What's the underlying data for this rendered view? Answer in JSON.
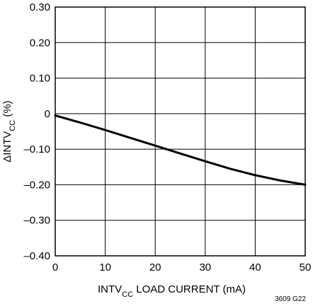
{
  "chart_data": {
    "type": "line",
    "xlabel": {
      "main": "INTV",
      "sub": "CC",
      "rest": " LOAD CURRENT (mA)"
    },
    "ylabel": {
      "prefix": "ΔINTV",
      "sub": "CC",
      "rest": " (%)"
    },
    "xlim": [
      0,
      50
    ],
    "ylim": [
      -0.4,
      0.3
    ],
    "xticks": [
      0,
      10,
      20,
      30,
      40,
      50
    ],
    "xtick_labels": [
      "0",
      "10",
      "20",
      "30",
      "40",
      "50"
    ],
    "yticks": [
      0.3,
      0.2,
      0.1,
      0,
      -0.1,
      -0.2,
      -0.3,
      -0.4
    ],
    "ytick_labels": [
      "0.30",
      "0.20",
      "0.10",
      "0",
      "–0.10",
      "–0.20",
      "–0.30",
      "–0.40"
    ],
    "grid": true,
    "series": [
      {
        "x": [
          0,
          5,
          10,
          15,
          20,
          25,
          30,
          35,
          40,
          45,
          50
        ],
        "y": [
          -0.005,
          -0.025,
          -0.046,
          -0.068,
          -0.09,
          -0.112,
          -0.134,
          -0.155,
          -0.173,
          -0.188,
          -0.2
        ]
      }
    ],
    "figure_id": "3609 G22"
  }
}
